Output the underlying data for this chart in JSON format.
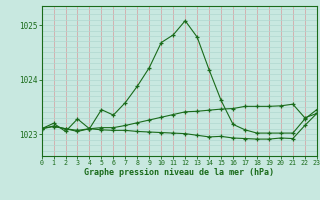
{
  "background_color": "#c8e8e0",
  "line_color": "#1a6b1a",
  "grid_color_v": "#d4a8a8",
  "grid_color_h": "#b0d8d0",
  "xlabel": "Graphe pression niveau de la mer (hPa)",
  "ylabel_ticks": [
    1023,
    1024,
    1025
  ],
  "xlim": [
    0,
    23
  ],
  "ylim": [
    1022.6,
    1025.35
  ],
  "hours": [
    0,
    1,
    2,
    3,
    4,
    5,
    6,
    7,
    8,
    9,
    10,
    11,
    12,
    13,
    14,
    15,
    16,
    17,
    18,
    19,
    20,
    21,
    22,
    23
  ],
  "curve1": [
    1023.1,
    1023.2,
    1023.05,
    1023.28,
    1023.1,
    1023.45,
    1023.35,
    1023.58,
    1023.88,
    1024.22,
    1024.68,
    1024.82,
    1025.08,
    1024.78,
    1024.18,
    1023.62,
    1023.18,
    1023.08,
    1023.02,
    1023.02,
    1023.02,
    1023.02,
    1023.28,
    1023.45
  ],
  "curve2": [
    1023.1,
    1023.15,
    1023.1,
    1023.05,
    1023.1,
    1023.08,
    1023.07,
    1023.07,
    1023.05,
    1023.04,
    1023.03,
    1023.02,
    1023.01,
    1022.98,
    1022.95,
    1022.96,
    1022.93,
    1022.92,
    1022.91,
    1022.91,
    1022.93,
    1022.92,
    1023.16,
    1023.38
  ],
  "curve3": [
    1023.1,
    1023.14,
    1023.1,
    1023.07,
    1023.1,
    1023.12,
    1023.12,
    1023.16,
    1023.21,
    1023.26,
    1023.31,
    1023.36,
    1023.41,
    1023.42,
    1023.44,
    1023.46,
    1023.47,
    1023.51,
    1023.51,
    1023.51,
    1023.52,
    1023.55,
    1023.3,
    1023.38
  ]
}
